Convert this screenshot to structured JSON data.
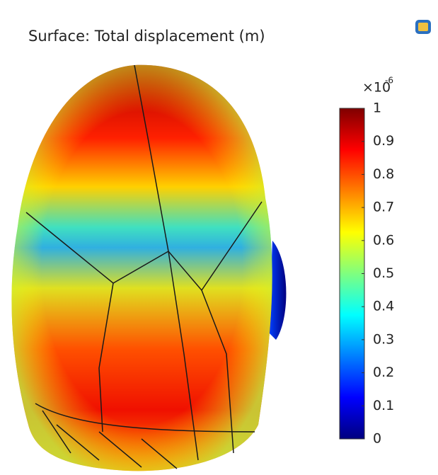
{
  "chart_data": {
    "type": "surface",
    "title": "Surface: Total displacement (m)",
    "colorbar_multiplier": "×10",
    "colorbar_exponent": "-6",
    "clim": [
      0,
      1
    ],
    "colorbar_ticks": [
      0,
      0.1,
      0.2,
      0.3,
      0.4,
      0.5,
      0.6,
      0.7,
      0.8,
      0.9,
      1
    ],
    "colormap": [
      "#00007f",
      "#0000ff",
      "#007fff",
      "#00ffff",
      "#7fff7f",
      "#ffff00",
      "#ff7f00",
      "#ff0000",
      "#7f0000"
    ]
  }
}
